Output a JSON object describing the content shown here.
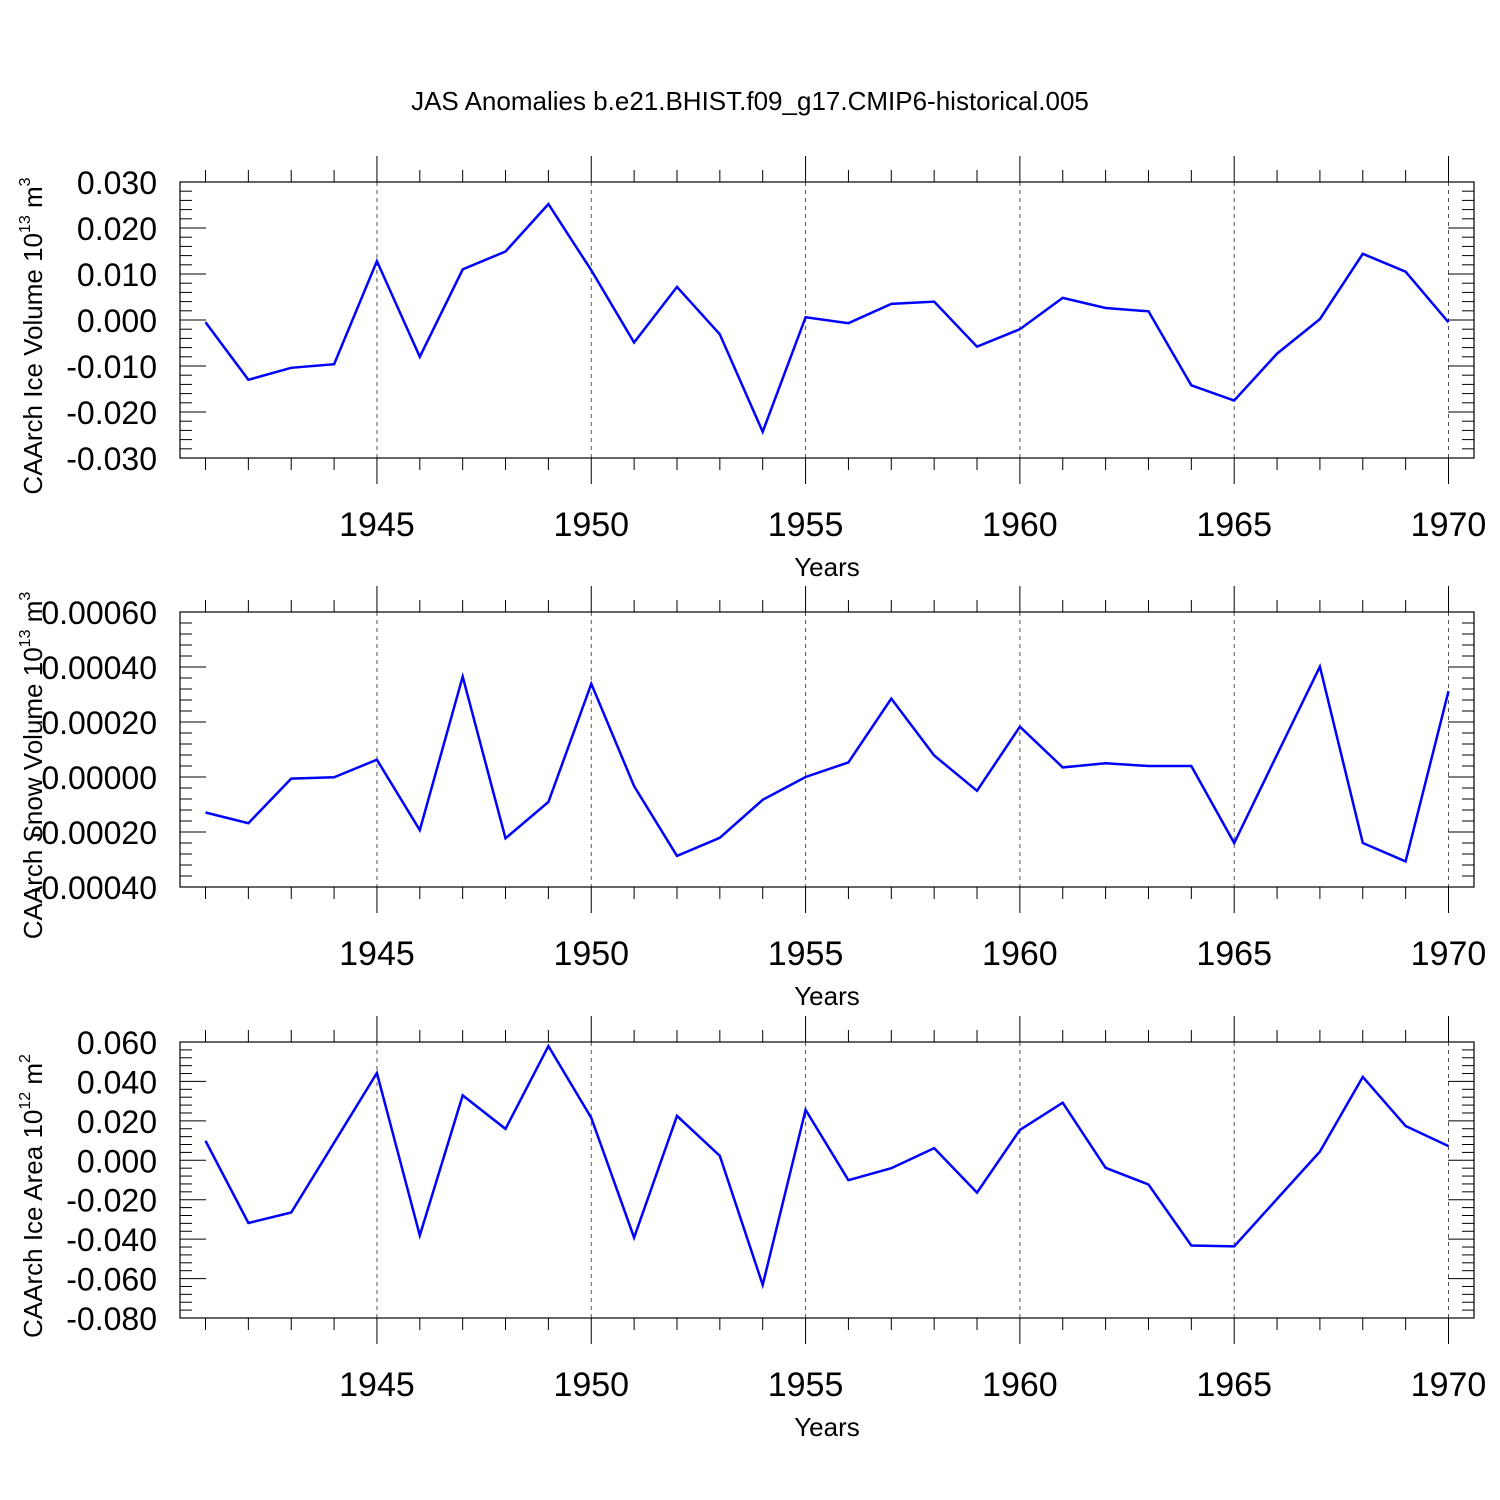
{
  "figure_title": "JAS Anomalies b.e21.BHIST.f09_g17.CMIP6-historical.005",
  "series_color": "#0000ff",
  "chart_data": [
    {
      "type": "line",
      "title": "JAS Anomalies b.e21.BHIST.f09_g17.CMIP6-historical.005",
      "xlabel": "Years",
      "ylabel_main": "CAArch Ice Volume 10",
      "ylabel_exp": "13",
      "ylabel_unit": " m",
      "ylabel_unit_exp": "3",
      "xlim": [
        1941,
        1970
      ],
      "ylim": [
        -0.03,
        0.03
      ],
      "x_ticks": [
        1945,
        1950,
        1955,
        1960,
        1965,
        1970
      ],
      "x_tick_labels": [
        "1945",
        "1950",
        "1955",
        "1960",
        "1965",
        "1970"
      ],
      "y_ticks": [
        -0.03,
        -0.02,
        -0.01,
        0.0,
        0.01,
        0.02,
        0.03
      ],
      "y_tick_labels": [
        "-0.030",
        "-0.020",
        "-0.010",
        "0.000",
        "0.010",
        "0.020",
        "0.030"
      ],
      "x": [
        1941,
        1942,
        1943,
        1944,
        1945,
        1946,
        1947,
        1948,
        1949,
        1950,
        1951,
        1952,
        1953,
        1954,
        1955,
        1956,
        1957,
        1958,
        1959,
        1960,
        1961,
        1962,
        1963,
        1964,
        1965,
        1966,
        1967,
        1968,
        1969,
        1970
      ],
      "series": [
        {
          "name": "CAArch Ice Volume",
          "values": [
            -0.0005,
            -0.013,
            -0.0104,
            -0.0096,
            0.0128,
            -0.008,
            0.011,
            0.0149,
            0.0252,
            0.0108,
            -0.0049,
            0.0072,
            -0.0031,
            -0.0243,
            0.0006,
            -0.0007,
            0.0035,
            0.004,
            -0.0058,
            -0.002,
            0.0048,
            0.0026,
            0.0019,
            -0.0142,
            -0.0175,
            -0.0073,
            0.0002,
            0.0144,
            0.0105,
            -0.0005
          ]
        }
      ]
    },
    {
      "type": "line",
      "xlabel": "Years",
      "ylabel_main": "CAArch Snow Volume 10",
      "ylabel_exp": "13",
      "ylabel_unit": " m",
      "ylabel_unit_exp": "3",
      "xlim": [
        1941,
        1970
      ],
      "ylim": [
        -0.0004,
        0.0006
      ],
      "x_ticks": [
        1945,
        1950,
        1955,
        1960,
        1965,
        1970
      ],
      "x_tick_labels": [
        "1945",
        "1950",
        "1955",
        "1960",
        "1965",
        "1970"
      ],
      "y_ticks": [
        -0.0004,
        -0.0002,
        0.0,
        0.0002,
        0.0004,
        0.0006
      ],
      "y_tick_labels": [
        "-0.00040",
        "-0.00020",
        "0.00000",
        "0.00020",
        "0.00040",
        "0.00060"
      ],
      "x": [
        1941,
        1942,
        1943,
        1944,
        1945,
        1946,
        1947,
        1948,
        1949,
        1950,
        1951,
        1952,
        1953,
        1954,
        1955,
        1956,
        1957,
        1958,
        1959,
        1960,
        1961,
        1962,
        1963,
        1964,
        1965,
        1966,
        1967,
        1968,
        1969,
        1970
      ],
      "series": [
        {
          "name": "CAArch Snow Volume",
          "values": [
            -0.000129,
            -0.000168,
            -6e-06,
            -1e-06,
            6.3e-05,
            -0.000193,
            0.000365,
            -0.000223,
            -9.1e-05,
            0.000339,
            -3.3e-05,
            -0.000287,
            -0.000221,
            -8.3e-05,
            0.0,
            5.3e-05,
            0.000285,
            7.8e-05,
            -5e-05,
            0.000183,
            3.5e-05,
            5e-05,
            4e-05,
            4e-05,
            -0.00024,
            8.2e-05,
            0.000401,
            -0.00024,
            -0.000307,
            0.000312
          ]
        }
      ]
    },
    {
      "type": "line",
      "xlabel": "Years",
      "ylabel_main": "CAArch Ice Area 10",
      "ylabel_exp": "12",
      "ylabel_unit": " m",
      "ylabel_unit_exp": "2",
      "xlim": [
        1941,
        1970
      ],
      "ylim": [
        -0.08,
        0.06
      ],
      "x_ticks": [
        1945,
        1950,
        1955,
        1960,
        1965,
        1970
      ],
      "x_tick_labels": [
        "1945",
        "1950",
        "1955",
        "1960",
        "1965",
        "1970"
      ],
      "y_ticks": [
        -0.08,
        -0.06,
        -0.04,
        -0.02,
        0.0,
        0.02,
        0.04,
        0.06
      ],
      "y_tick_labels": [
        "-0.080",
        "-0.060",
        "-0.040",
        "-0.020",
        "0.000",
        "0.020",
        "0.040",
        "0.060"
      ],
      "x": [
        1941,
        1942,
        1943,
        1944,
        1945,
        1946,
        1947,
        1948,
        1949,
        1950,
        1951,
        1952,
        1953,
        1954,
        1955,
        1956,
        1957,
        1958,
        1959,
        1960,
        1961,
        1962,
        1963,
        1964,
        1965,
        1966,
        1967,
        1968,
        1969,
        1970
      ],
      "series": [
        {
          "name": "CAArch Ice Area",
          "values": [
            0.0099,
            -0.0318,
            -0.0265,
            0.0089,
            0.0443,
            -0.0381,
            0.0329,
            0.0159,
            0.0579,
            0.0215,
            -0.0392,
            0.0225,
            0.0023,
            -0.0632,
            0.0256,
            -0.0101,
            -0.004,
            0.0062,
            -0.0164,
            0.0154,
            0.0292,
            -0.0038,
            -0.0123,
            -0.0432,
            -0.0437,
            -0.0196,
            0.0044,
            0.0423,
            0.0174,
            0.0072
          ]
        }
      ]
    }
  ]
}
